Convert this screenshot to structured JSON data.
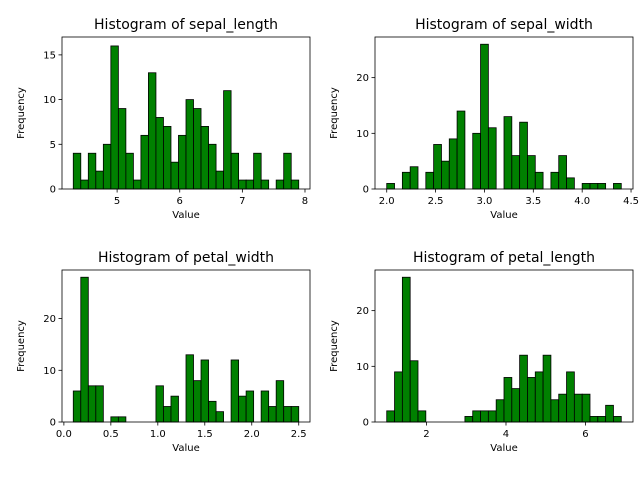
{
  "chart_data": [
    {
      "type": "bar",
      "title": "Histogram of sepal_length",
      "xlabel": "Value",
      "ylabel": "Frequency",
      "xlim": [
        4.12,
        8.08
      ],
      "ylim": [
        0,
        17
      ],
      "x_ticks": [
        5,
        6,
        7,
        8
      ],
      "y_ticks": [
        0,
        5,
        10,
        15
      ],
      "bar_color": "#008000",
      "bin_start": 4.3,
      "bin_width": 0.12,
      "values": [
        4,
        1,
        4,
        2,
        5,
        16,
        9,
        4,
        1,
        6,
        13,
        8,
        7,
        3,
        6,
        10,
        9,
        7,
        5,
        2,
        11,
        4,
        1,
        1,
        4,
        1,
        0,
        1,
        4,
        1
      ]
    },
    {
      "type": "bar",
      "title": "Histogram of sepal_width",
      "xlabel": "Value",
      "ylabel": "Frequency",
      "xlim": [
        1.88,
        4.52
      ],
      "ylim": [
        0,
        27.3
      ],
      "x_ticks": [
        2.0,
        2.5,
        3.0,
        3.5,
        4.0,
        4.5
      ],
      "y_ticks": [
        0,
        10,
        20
      ],
      "bar_color": "#008000",
      "bin_start": 2.0,
      "bin_width": 0.08,
      "values": [
        1,
        0,
        3,
        4,
        0,
        3,
        8,
        5,
        9,
        14,
        0,
        10,
        26,
        11,
        0,
        13,
        6,
        12,
        6,
        3,
        0,
        3,
        6,
        2,
        0,
        1,
        1,
        1,
        0,
        1
      ]
    },
    {
      "type": "bar",
      "title": "Histogram of petal_width",
      "xlabel": "Value",
      "ylabel": "Frequency",
      "xlim": [
        -0.02,
        2.62
      ],
      "ylim": [
        0,
        29.4
      ],
      "x_ticks": [
        0.0,
        0.5,
        1.0,
        1.5,
        2.0,
        2.5
      ],
      "y_ticks": [
        0,
        10,
        20
      ],
      "bar_color": "#008000",
      "bin_start": 0.1,
      "bin_width": 0.08,
      "values": [
        6,
        28,
        7,
        7,
        0,
        1,
        1,
        0,
        0,
        0,
        0,
        7,
        3,
        5,
        0,
        13,
        8,
        12,
        4,
        2,
        0,
        12,
        5,
        6,
        0,
        6,
        3,
        8,
        3,
        3
      ]
    },
    {
      "type": "bar",
      "title": "Histogram of petal_length",
      "xlabel": "Value",
      "ylabel": "Frequency",
      "xlim": [
        0.705,
        7.195
      ],
      "ylim": [
        0,
        27.3
      ],
      "x_ticks": [
        2,
        4,
        6
      ],
      "y_ticks": [
        0,
        10,
        20
      ],
      "bar_color": "#008000",
      "bin_start": 1.0,
      "bin_width": 0.19666,
      "values": [
        2,
        9,
        26,
        11,
        2,
        0,
        0,
        0,
        0,
        0,
        1,
        2,
        2,
        2,
        4,
        8,
        6,
        12,
        8,
        9,
        12,
        4,
        5,
        9,
        5,
        5,
        1,
        1,
        3,
        1
      ]
    }
  ]
}
